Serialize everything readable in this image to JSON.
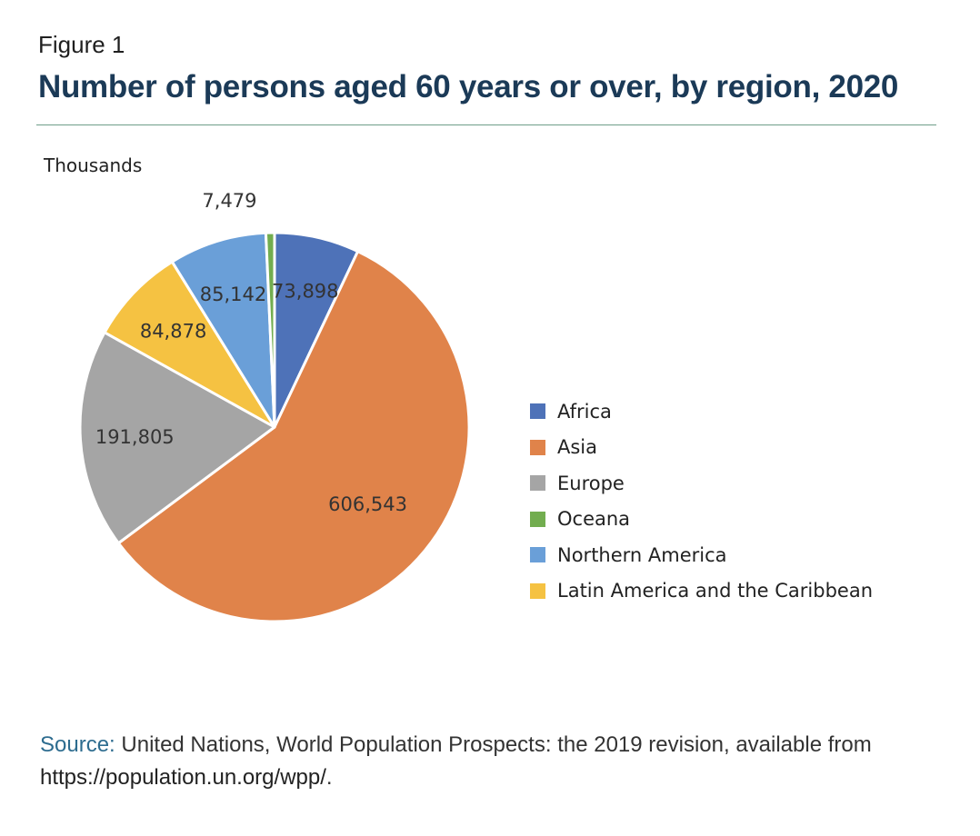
{
  "figure": {
    "label": "Figure 1",
    "title": "Number of persons aged 60 years or over, by region, 2020",
    "units": "Thousands"
  },
  "colors": {
    "title": "#1b3a57",
    "rule": "#6f9e8a",
    "source_key": "#2d6c8f"
  },
  "chart_data": {
    "type": "pie",
    "title": "Number of persons aged 60 years or over, by region, 2020",
    "unit": "Thousands",
    "legend_position": "right",
    "start_angle_deg": 0,
    "direction": "clockwise",
    "slices": [
      {
        "label": "Africa",
        "value": 73898,
        "display": "73,898",
        "color": "#4e72b8"
      },
      {
        "label": "Asia",
        "value": 606543,
        "display": "606,543",
        "color": "#e0834a"
      },
      {
        "label": "Europe",
        "value": 191805,
        "display": "191,805",
        "color": "#a5a5a5"
      },
      {
        "label": "Latin America and the Caribbean",
        "value": 84878,
        "display": "84,878",
        "color": "#f5c242"
      },
      {
        "label": "Northern America",
        "value": 85142,
        "display": "85,142",
        "color": "#6a9fd8"
      },
      {
        "label": "Oceana",
        "value": 7479,
        "display": "7,479",
        "color": "#72ad4f"
      }
    ],
    "legend_order": [
      "Africa",
      "Asia",
      "Europe",
      "Oceana",
      "Northern America",
      "Latin America and the Caribbean"
    ]
  },
  "source": {
    "key": "Source:",
    "text": " United Nations, World Population Prospects: the 2019 revision, available from ",
    "url": "https://population.un.org/wpp/",
    "end": "."
  }
}
